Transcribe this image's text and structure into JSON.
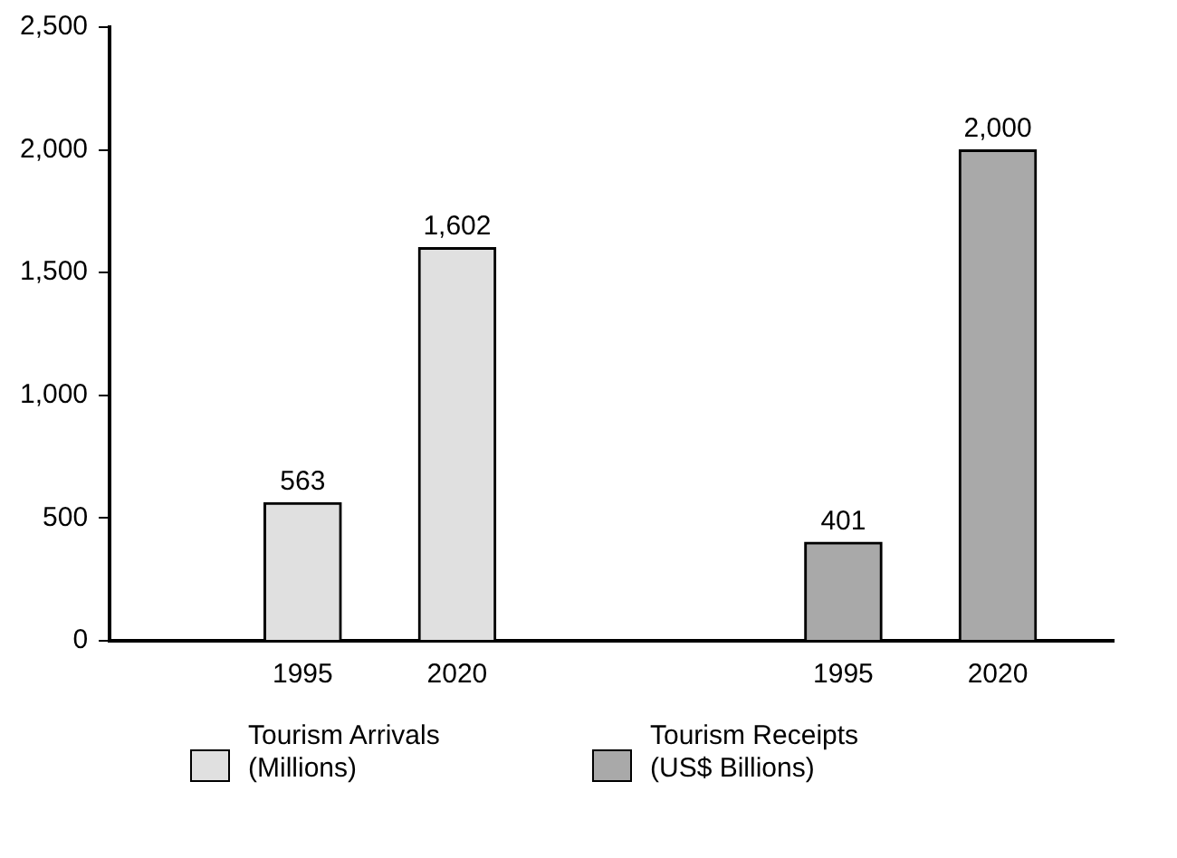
{
  "chart_data": {
    "type": "bar",
    "categories": [
      null,
      null,
      "1995",
      null,
      "2020",
      null,
      null,
      null,
      null,
      "1995",
      null,
      "2020",
      null
    ],
    "series": [
      {
        "name": "Tourism Arrivals (Millions)",
        "color": "#e0e0e0",
        "values": [
          null,
          null,
          563,
          null,
          1602,
          null,
          null,
          null,
          null,
          null,
          null,
          null,
          null
        ],
        "value_labels": [
          null,
          null,
          "563",
          null,
          "1,602",
          null,
          null,
          null,
          null,
          null,
          null,
          null,
          null
        ]
      },
      {
        "name": "Tourism Receipts (US$ Billions)",
        "color": "#a9a9a9",
        "values": [
          null,
          null,
          null,
          null,
          null,
          null,
          null,
          null,
          null,
          401,
          null,
          2000,
          null
        ],
        "value_labels": [
          null,
          null,
          null,
          null,
          null,
          null,
          null,
          null,
          null,
          "401",
          null,
          "2,000",
          null
        ]
      }
    ],
    "ylim": [
      0,
      2500
    ],
    "yticks": [
      0,
      500,
      {
        "value": 1000,
        "label": "1,000"
      },
      {
        "value": 1500,
        "label": "1,500"
      },
      {
        "value": 2000,
        "label": "2,000"
      },
      {
        "value": 2500,
        "label": "2,500"
      }
    ],
    "grid": false,
    "legend": "bottom"
  }
}
